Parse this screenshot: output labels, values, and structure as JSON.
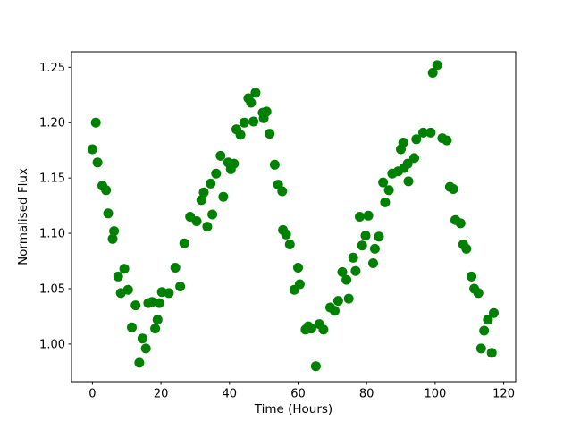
{
  "chart_data": {
    "type": "scatter",
    "title": "",
    "xlabel": "Time (Hours)",
    "ylabel": "Normalised Flux",
    "series_color": "#008000",
    "marker_radius_px": 5.5,
    "grid": false,
    "legend": "none",
    "xlim": [
      -6.1,
      123.5
    ],
    "ylim": [
      0.966,
      1.264
    ],
    "x_tick_values": [
      0,
      20,
      40,
      60,
      80,
      100,
      120
    ],
    "x_tick_labels": [
      "0",
      "20",
      "40",
      "60",
      "80",
      "100",
      "120"
    ],
    "y_tick_values": [
      1.0,
      1.05,
      1.1,
      1.15,
      1.2,
      1.25
    ],
    "y_tick_labels": [
      "1.00",
      "1.05",
      "1.10",
      "1.15",
      "1.20",
      "1.25"
    ],
    "points": [
      [
        0.0,
        1.176
      ],
      [
        1.0,
        1.2
      ],
      [
        1.5,
        1.164
      ],
      [
        2.9,
        1.143
      ],
      [
        4.0,
        1.139
      ],
      [
        4.6,
        1.118
      ],
      [
        5.9,
        1.095
      ],
      [
        6.3,
        1.102
      ],
      [
        7.5,
        1.061
      ],
      [
        8.3,
        1.046
      ],
      [
        9.3,
        1.068
      ],
      [
        10.4,
        1.049
      ],
      [
        11.5,
        1.015
      ],
      [
        12.6,
        1.035
      ],
      [
        13.7,
        0.983
      ],
      [
        14.6,
        1.005
      ],
      [
        15.6,
        0.996
      ],
      [
        16.3,
        1.037
      ],
      [
        17.4,
        1.038
      ],
      [
        18.3,
        1.014
      ],
      [
        19.0,
        1.022
      ],
      [
        19.5,
        1.037
      ],
      [
        20.3,
        1.047
      ],
      [
        22.3,
        1.046
      ],
      [
        24.2,
        1.069
      ],
      [
        25.6,
        1.052
      ],
      [
        26.8,
        1.091
      ],
      [
        28.5,
        1.115
      ],
      [
        30.4,
        1.111
      ],
      [
        31.8,
        1.13
      ],
      [
        32.5,
        1.137
      ],
      [
        33.5,
        1.106
      ],
      [
        34.5,
        1.145
      ],
      [
        35.0,
        1.117
      ],
      [
        36.1,
        1.154
      ],
      [
        37.4,
        1.17
      ],
      [
        38.2,
        1.133
      ],
      [
        39.6,
        1.164
      ],
      [
        40.4,
        1.158
      ],
      [
        41.3,
        1.163
      ],
      [
        42.0,
        1.194
      ],
      [
        43.2,
        1.189
      ],
      [
        44.3,
        1.2
      ],
      [
        45.5,
        1.222
      ],
      [
        46.3,
        1.218
      ],
      [
        47.0,
        1.201
      ],
      [
        47.6,
        1.227
      ],
      [
        49.7,
        1.209
      ],
      [
        50.0,
        1.204
      ],
      [
        50.8,
        1.21
      ],
      [
        51.7,
        1.19
      ],
      [
        53.2,
        1.162
      ],
      [
        54.2,
        1.144
      ],
      [
        55.4,
        1.138
      ],
      [
        55.6,
        1.103
      ],
      [
        56.5,
        1.099
      ],
      [
        57.6,
        1.09
      ],
      [
        58.9,
        1.049
      ],
      [
        60.0,
        1.069
      ],
      [
        60.5,
        1.054
      ],
      [
        62.2,
        1.013
      ],
      [
        63.0,
        1.016
      ],
      [
        63.9,
        1.014
      ],
      [
        65.2,
        0.98
      ],
      [
        66.2,
        1.018
      ],
      [
        67.4,
        1.013
      ],
      [
        69.4,
        1.033
      ],
      [
        70.7,
        1.03
      ],
      [
        71.7,
        1.039
      ],
      [
        72.9,
        1.065
      ],
      [
        74.1,
        1.058
      ],
      [
        74.8,
        1.041
      ],
      [
        76.1,
        1.078
      ],
      [
        76.8,
        1.066
      ],
      [
        78.0,
        1.115
      ],
      [
        78.7,
        1.089
      ],
      [
        79.7,
        1.098
      ],
      [
        80.5,
        1.116
      ],
      [
        81.9,
        1.073
      ],
      [
        82.4,
        1.086
      ],
      [
        83.6,
        1.097
      ],
      [
        84.8,
        1.146
      ],
      [
        85.4,
        1.128
      ],
      [
        86.5,
        1.139
      ],
      [
        87.5,
        1.154
      ],
      [
        89.2,
        1.156
      ],
      [
        90.0,
        1.176
      ],
      [
        90.7,
        1.182
      ],
      [
        90.9,
        1.159
      ],
      [
        92.0,
        1.163
      ],
      [
        92.2,
        1.147
      ],
      [
        93.9,
        1.168
      ],
      [
        94.5,
        1.185
      ],
      [
        96.5,
        1.191
      ],
      [
        98.7,
        1.191
      ],
      [
        99.3,
        1.245
      ],
      [
        100.6,
        1.252
      ],
      [
        102.1,
        1.186
      ],
      [
        103.4,
        1.184
      ],
      [
        104.3,
        1.142
      ],
      [
        105.3,
        1.14
      ],
      [
        105.9,
        1.112
      ],
      [
        107.4,
        1.109
      ],
      [
        108.2,
        1.09
      ],
      [
        109.1,
        1.086
      ],
      [
        110.6,
        1.061
      ],
      [
        111.4,
        1.05
      ],
      [
        112.6,
        1.046
      ],
      [
        113.4,
        0.996
      ],
      [
        114.3,
        1.012
      ],
      [
        115.4,
        1.022
      ],
      [
        116.5,
        0.992
      ],
      [
        117.1,
        1.028
      ]
    ]
  }
}
